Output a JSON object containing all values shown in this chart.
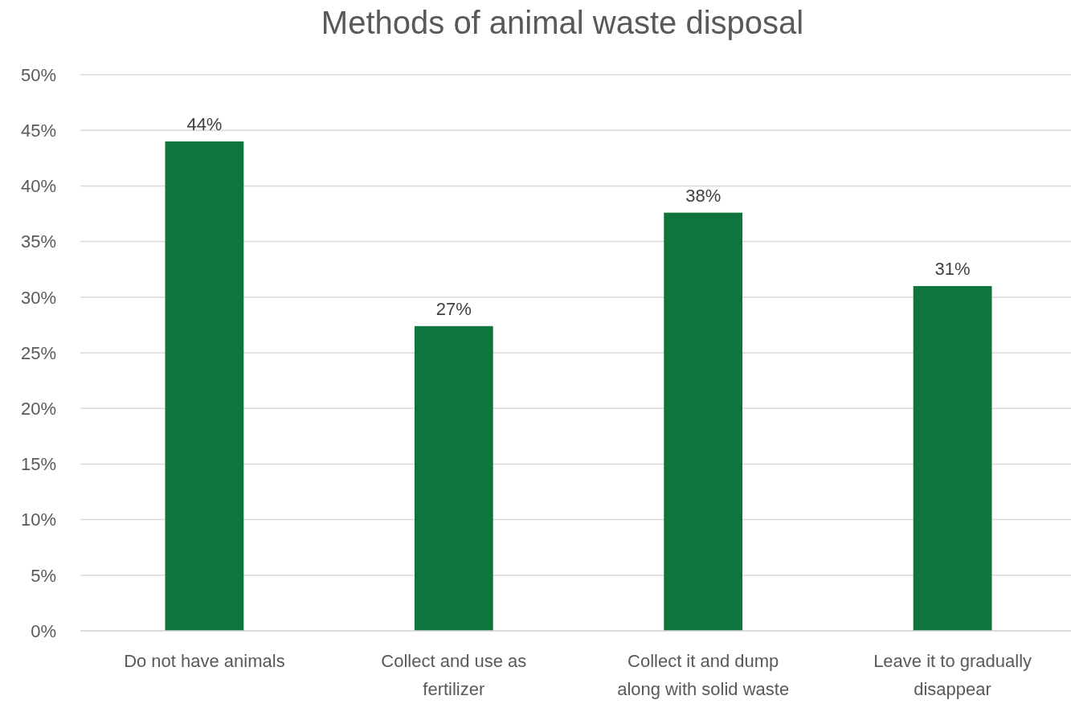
{
  "chart_data": {
    "type": "bar",
    "title": "Methods of animal waste disposal",
    "categories": [
      "Do not have animals",
      "Collect and use as fertilizer",
      "Collect it and dump along with solid waste",
      "Leave it to gradually disappear"
    ],
    "values": [
      44,
      27.4,
      37.6,
      31
    ],
    "value_labels": [
      "44%",
      "27%",
      "38%",
      "31%"
    ],
    "color": "#0e753c",
    "ylim": [
      0,
      50
    ],
    "yticks": [
      {
        "value": 0,
        "label": "0%"
      },
      {
        "value": 5,
        "label": "5%"
      },
      {
        "value": 10,
        "label": "10%"
      },
      {
        "value": 15,
        "label": "15%"
      },
      {
        "value": 20,
        "label": "20%"
      },
      {
        "value": 25,
        "label": "25%"
      },
      {
        "value": 30,
        "label": "30%"
      },
      {
        "value": 35,
        "label": "35%"
      },
      {
        "value": 40,
        "label": "40%"
      },
      {
        "value": 45,
        "label": "45%"
      },
      {
        "value": 50,
        "label": "50%"
      }
    ],
    "grid": "y"
  }
}
